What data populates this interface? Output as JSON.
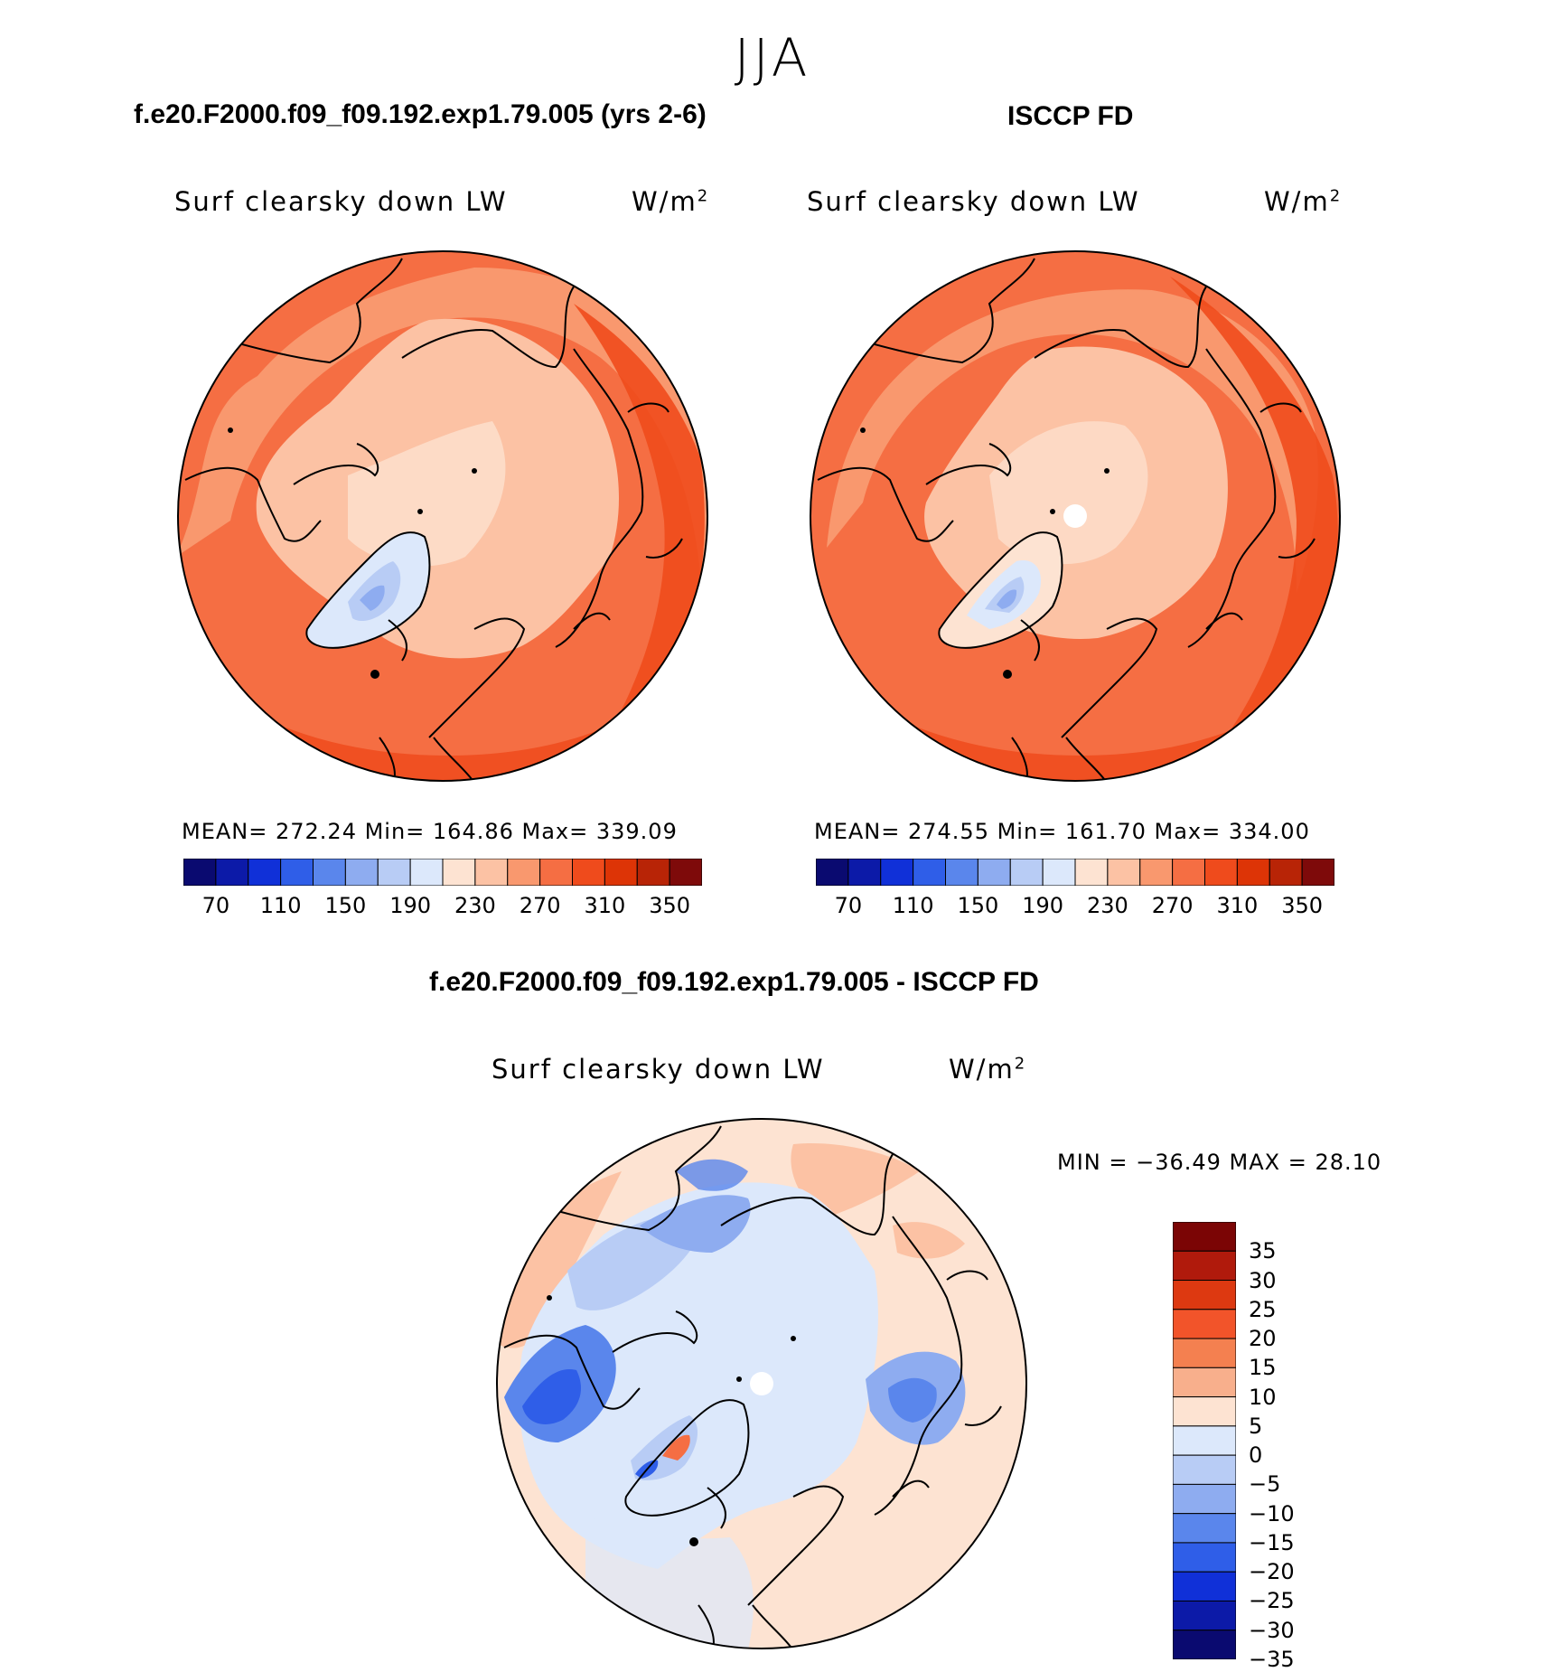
{
  "season": "JJA",
  "panels": [
    {
      "title": "f.e20.F2000.f09_f09.192.exp1.79.005 (yrs 2-6)",
      "field": "Surf clearsky down LW",
      "units": "W/m",
      "units_exp": "2",
      "stats": "MEAN= 272.24   Min= 164.86   Max= 339.09",
      "has_missing_pole": false
    },
    {
      "title": "ISCCP FD",
      "field": "Surf clearsky down LW",
      "units": "W/m",
      "units_exp": "2",
      "stats": "MEAN= 274.55   Min= 161.70   Max= 334.00",
      "has_missing_pole": true
    }
  ],
  "abs_colorbar": {
    "colors": [
      "#0a0a70",
      "#0c1aa8",
      "#1030d8",
      "#2f5ee8",
      "#5a86ec",
      "#8eacf0",
      "#b8ccf5",
      "#dce8fb",
      "#fde3d2",
      "#fcc2a4",
      "#f9986e",
      "#f56e43",
      "#ef4b1c",
      "#dd3406",
      "#b82406",
      "#7e0a0a"
    ],
    "ticks": [
      "70",
      "110",
      "150",
      "190",
      "230",
      "270",
      "310",
      "350"
    ]
  },
  "diff_panel": {
    "title": "f.e20.F2000.f09_f09.192.exp1.79.005 - ISCCP FD",
    "field": "Surf clearsky down LW",
    "units": "W/m",
    "units_exp": "2",
    "minmax": "MIN = −36.49  MAX =   28.10"
  },
  "diff_colorbar": {
    "colors": [
      "#7b0505",
      "#b01a0c",
      "#dd3911",
      "#f2542a",
      "#f48050",
      "#f8af8c",
      "#fde3d2",
      "#dce8fb",
      "#b8ccf5",
      "#8eacf0",
      "#5a86ec",
      "#2f5ee8",
      "#1030d8",
      "#0c1aa8",
      "#0a0a70"
    ],
    "ticks": [
      "35",
      "30",
      "25",
      "20",
      "15",
      "10",
      "5",
      "0",
      "−5",
      "−10",
      "−15",
      "−20",
      "−25",
      "−30",
      "−35"
    ]
  }
}
